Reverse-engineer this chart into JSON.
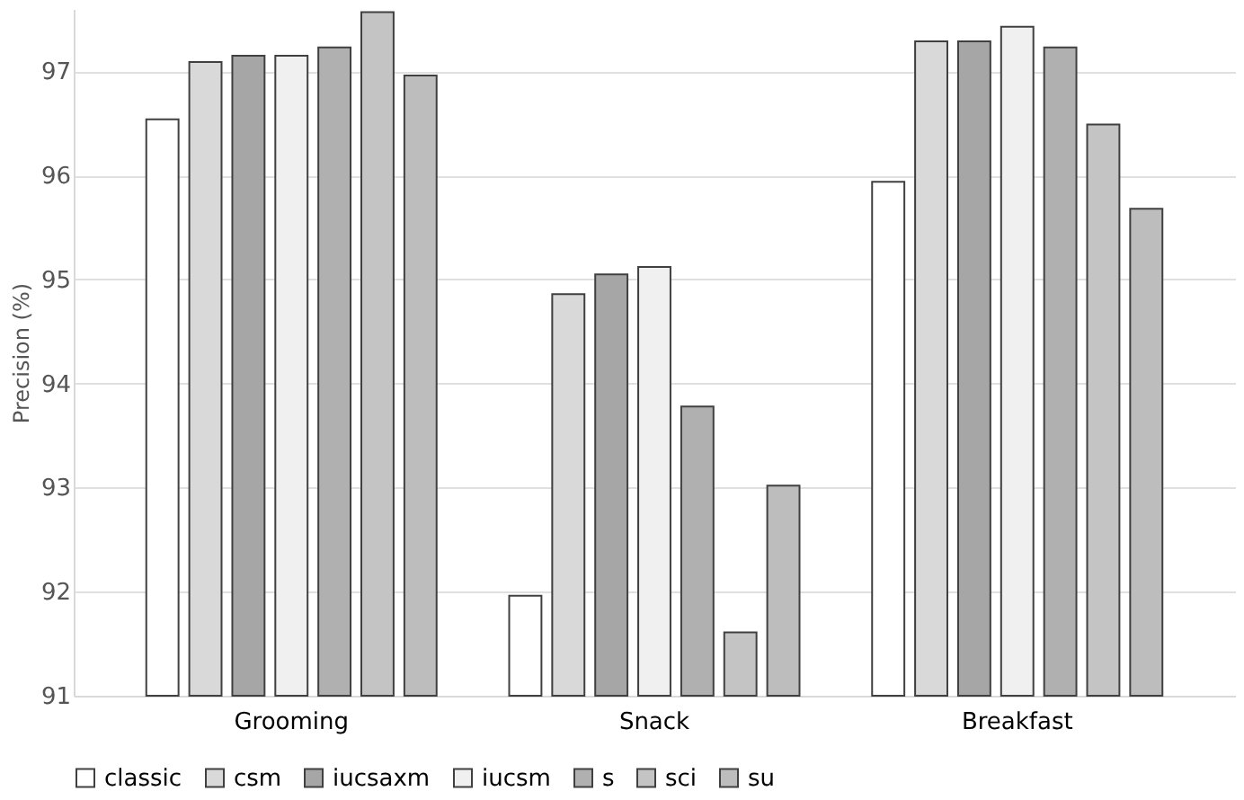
{
  "chart_data": {
    "type": "bar",
    "ylabel": "Precision (%)",
    "categories": [
      "Grooming",
      "Snack",
      "Breakfast"
    ],
    "series": [
      {
        "name": "classic",
        "color": "#ffffff",
        "values": [
          96.54,
          91.96,
          95.94
        ]
      },
      {
        "name": "csm",
        "color": "#d9d9d9",
        "values": [
          97.09,
          94.86,
          97.29
        ]
      },
      {
        "name": "iucsaxm",
        "color": "#a6a6a6",
        "values": [
          97.15,
          95.05,
          97.29
        ]
      },
      {
        "name": "iucsm",
        "color": "#f0f0f0",
        "values": [
          97.15,
          95.12,
          97.43
        ]
      },
      {
        "name": "s",
        "color": "#b0b0b0",
        "values": [
          97.23,
          93.78,
          97.23
        ]
      },
      {
        "name": "sci",
        "color": "#c4c4c4",
        "values": [
          97.57,
          91.61,
          96.49
        ]
      },
      {
        "name": "su",
        "color": "#bdbdbd",
        "values": [
          96.96,
          93.02,
          95.68
        ]
      }
    ],
    "ylim": [
      91,
      97.6
    ],
    "yticks": [
      91,
      92,
      93,
      94,
      95,
      96,
      97
    ],
    "grid": "y",
    "legend": "bottom"
  }
}
